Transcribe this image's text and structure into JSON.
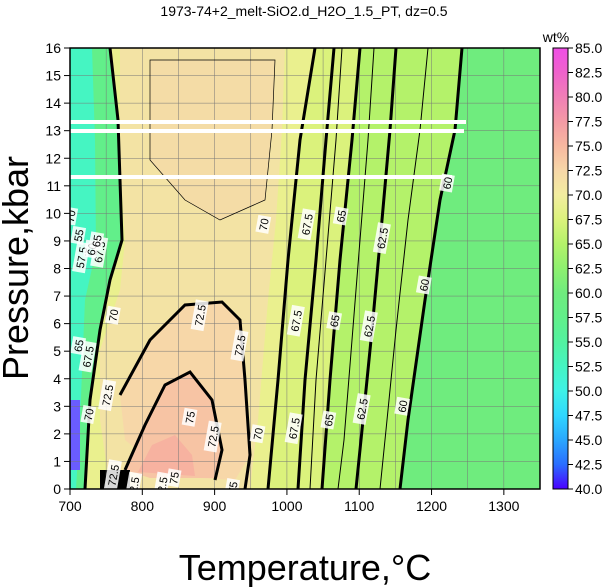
{
  "chart_data": {
    "type": "heatmap",
    "title": "1973-74+2_melt-SiO2.d_H2O_1.5_PT, dz=0.5",
    "xlabel": "Temperature,°C",
    "ylabel": "Pressure,kbar",
    "xlim": [
      700,
      1350
    ],
    "ylim": [
      0,
      16
    ],
    "x_ticks": [
      "700",
      "800",
      "900",
      "1000",
      "1100",
      "1200",
      "1300"
    ],
    "y_ticks": [
      "0",
      "1",
      "2",
      "3",
      "4",
      "5",
      "6",
      "7",
      "8",
      "9",
      "10",
      "11",
      "12",
      "13",
      "14",
      "15",
      "16"
    ],
    "grid": true,
    "colorbar": {
      "label": "wt%",
      "min": 40,
      "max": 85,
      "ticks": [
        "85.0",
        "82.5",
        "80.0",
        "77.5",
        "75.0",
        "72.5",
        "70.0",
        "67.5",
        "65.0",
        "62.5",
        "60.0",
        "57.5",
        "55.0",
        "52.5",
        "50.0",
        "47.5",
        "45.0",
        "42.5",
        "40.0"
      ],
      "stops": [
        {
          "value": 40.0,
          "color": "#4b00ff"
        },
        {
          "value": 42.5,
          "color": "#2a6dff"
        },
        {
          "value": 45.0,
          "color": "#2aa7ff"
        },
        {
          "value": 47.5,
          "color": "#2fd7ff"
        },
        {
          "value": 50.0,
          "color": "#3ef2e6"
        },
        {
          "value": 52.5,
          "color": "#45f5c2"
        },
        {
          "value": 55.0,
          "color": "#52f2a0"
        },
        {
          "value": 57.5,
          "color": "#62ef8a"
        },
        {
          "value": 60.0,
          "color": "#6fec7e"
        },
        {
          "value": 62.5,
          "color": "#8ef06f"
        },
        {
          "value": 65.0,
          "color": "#b4f26a"
        },
        {
          "value": 67.5,
          "color": "#dbf27c"
        },
        {
          "value": 70.0,
          "color": "#f3eda0"
        },
        {
          "value": 72.5,
          "color": "#f7d7a8"
        },
        {
          "value": 75.0,
          "color": "#f7b8a0"
        },
        {
          "value": 77.5,
          "color": "#f49aa5"
        },
        {
          "value": 80.0,
          "color": "#f07fb6"
        },
        {
          "value": 82.5,
          "color": "#ef62cc"
        },
        {
          "value": 85.0,
          "color": "#ef4fe6"
        }
      ]
    },
    "contour_labels": [
      {
        "text": "70",
        "temperature": 701,
        "pressure": 9.9
      },
      {
        "text": "70",
        "temperature": 760,
        "pressure": 6.3
      },
      {
        "text": "72.5",
        "temperature": 880,
        "pressure": 6.3
      },
      {
        "text": "72.5",
        "temperature": 935,
        "pressure": 5.2
      },
      {
        "text": "72.5",
        "temperature": 752,
        "pressure": 3.4
      },
      {
        "text": "72.5",
        "temperature": 898,
        "pressure": 1.9
      },
      {
        "text": "75",
        "temperature": 866,
        "pressure": 2.6
      },
      {
        "text": "75",
        "temperature": 844,
        "pressure": 0.4
      },
      {
        "text": "75",
        "temperature": 925,
        "pressure": 0.05
      },
      {
        "text": "70",
        "temperature": 968,
        "pressure": 9.6
      },
      {
        "text": "70",
        "temperature": 960,
        "pressure": 2.0
      },
      {
        "text": "67.5",
        "temperature": 1028,
        "pressure": 9.6
      },
      {
        "text": "67.5",
        "temperature": 1013,
        "pressure": 6.1
      },
      {
        "text": "67.5",
        "temperature": 1010,
        "pressure": 2.2
      },
      {
        "text": "65",
        "temperature": 1075,
        "pressure": 9.9
      },
      {
        "text": "65",
        "temperature": 1066,
        "pressure": 6.1
      },
      {
        "text": "65",
        "temperature": 1058,
        "pressure": 2.5
      },
      {
        "text": "62.5",
        "temperature": 1132,
        "pressure": 9.1
      },
      {
        "text": "62.5",
        "temperature": 1114,
        "pressure": 5.9
      },
      {
        "text": "62.5",
        "temperature": 1104,
        "pressure": 2.9
      },
      {
        "text": "60",
        "temperature": 1222,
        "pressure": 11.1
      },
      {
        "text": "60",
        "temperature": 1190,
        "pressure": 7.4
      },
      {
        "text": "60",
        "temperature": 1160,
        "pressure": 3.0
      },
      {
        "text": "72.5",
        "temperature": 827,
        "pressure": 0.05
      },
      {
        "text": "72.5",
        "temperature": 788,
        "pressure": 0.05
      },
      {
        "text": "72.5",
        "temperature": 760,
        "pressure": 0.5
      },
      {
        "text": "57.5",
        "temperature": 716,
        "pressure": 8.4
      },
      {
        "text": "67.5",
        "temperature": 741,
        "pressure": 8.6
      },
      {
        "text": "60",
        "temperature": 730,
        "pressure": 8.7
      },
      {
        "text": "55",
        "temperature": 712,
        "pressure": 9.2
      },
      {
        "text": "65",
        "temperature": 737,
        "pressure": 9.0
      },
      {
        "text": "67.5",
        "temperature": 725,
        "pressure": 4.8
      },
      {
        "text": "65",
        "temperature": 712,
        "pressure": 5.2
      },
      {
        "text": "70",
        "temperature": 726,
        "pressure": 2.7
      }
    ]
  }
}
